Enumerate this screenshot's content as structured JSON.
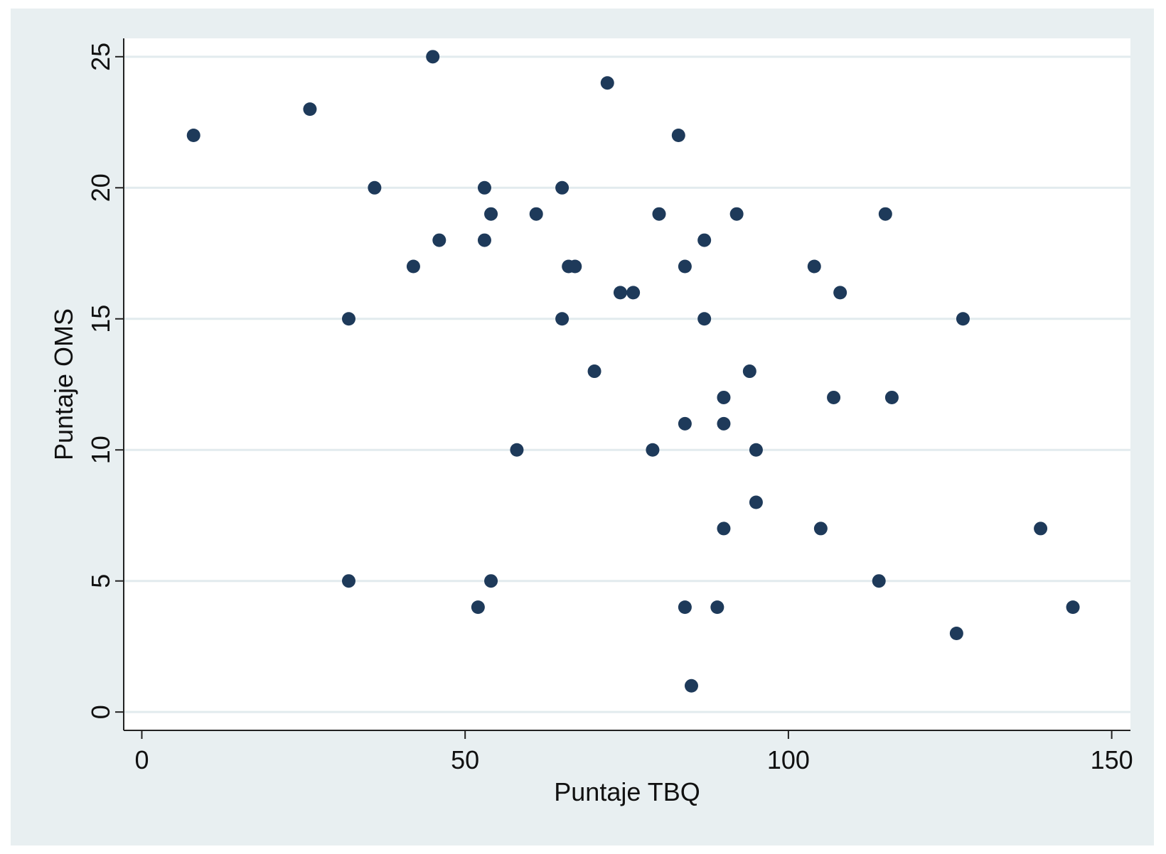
{
  "chart_data": {
    "type": "scatter",
    "x_label": "Puntaje TBQ",
    "y_label": "Puntaje OMS",
    "color": "#1e3a5a",
    "grid": true,
    "xlim": [
      -2.8,
      152.9
    ],
    "ylim": [
      -0.7,
      25.7
    ],
    "xticks": [
      0,
      50,
      100,
      150
    ],
    "yticks": [
      0,
      5,
      10,
      15,
      20,
      25
    ],
    "x": [
      8,
      26,
      32,
      32,
      36,
      42,
      45,
      46,
      52,
      53,
      53,
      54,
      54,
      58,
      61,
      65,
      65,
      66,
      67,
      70,
      72,
      74,
      76,
      79,
      80,
      83,
      84,
      84,
      84,
      85,
      87,
      87,
      89,
      90,
      90,
      90,
      92,
      94,
      95,
      95,
      104,
      105,
      107,
      108,
      114,
      115,
      116,
      126,
      127,
      139,
      144
    ],
    "values": [
      22,
      23,
      15,
      5,
      20,
      17,
      25,
      18,
      4,
      20,
      18,
      19,
      5,
      10,
      19,
      20,
      15,
      17,
      17,
      13,
      24,
      16,
      16,
      10,
      19,
      22,
      17,
      11,
      4,
      1,
      18,
      15,
      4,
      12,
      11,
      7,
      19,
      13,
      10,
      8,
      17,
      7,
      12,
      16,
      5,
      19,
      12,
      3,
      15,
      7,
      4
    ]
  }
}
